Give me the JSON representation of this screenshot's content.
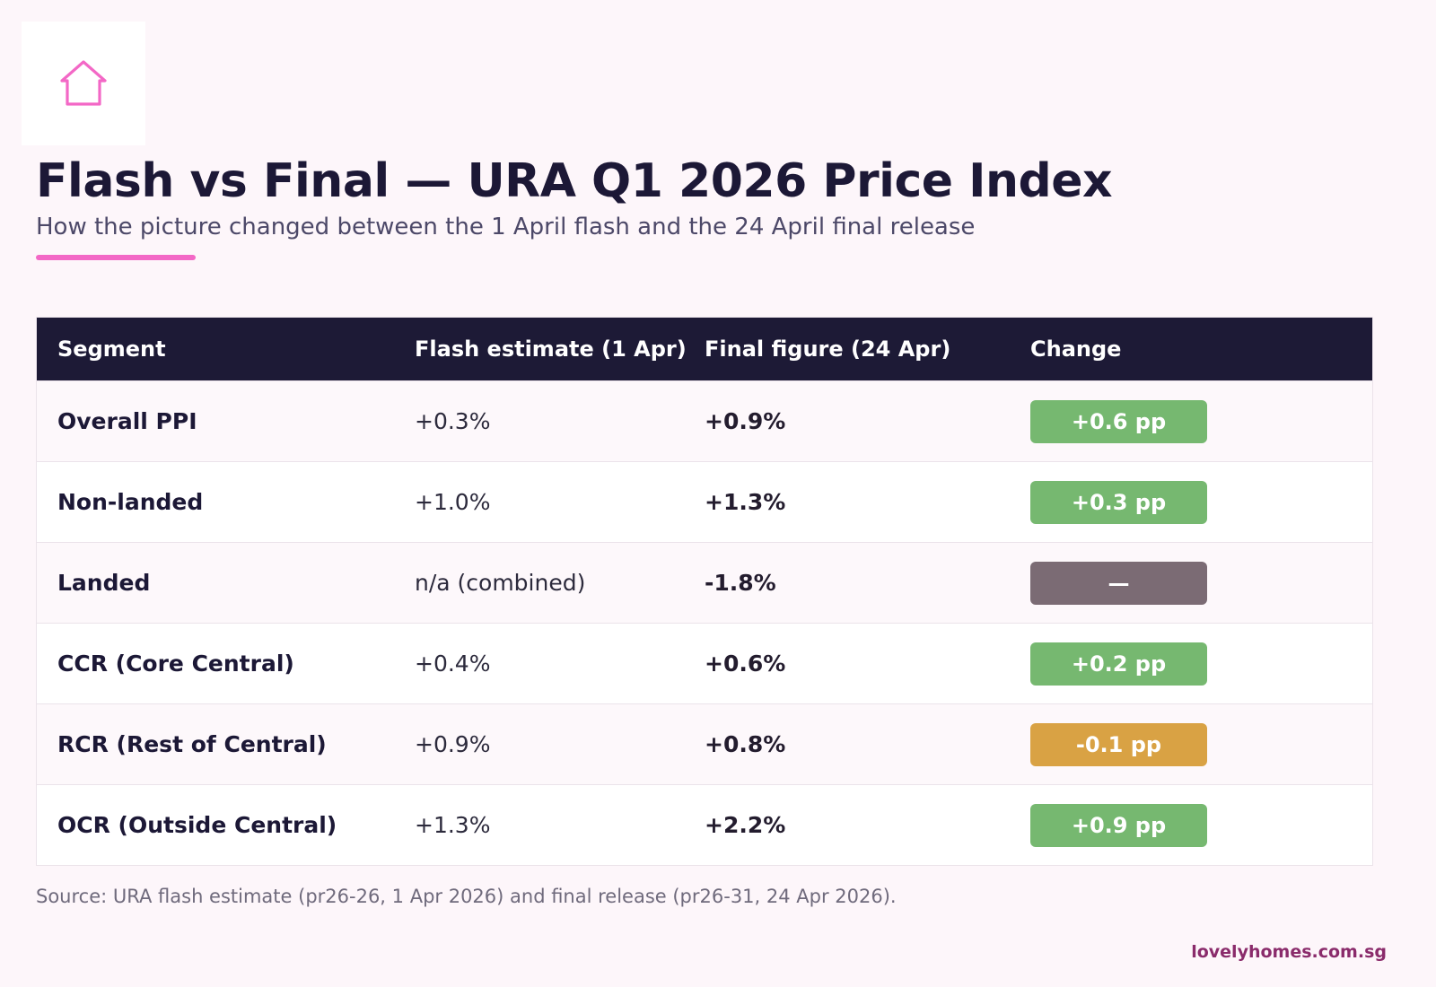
{
  "logo": {
    "icon": "house-icon",
    "color": "#f368c6"
  },
  "header": {
    "title": "Flash vs Final — URA Q1 2026 Price Index",
    "subtitle": "How the picture changed between the 1 April flash and the 24 April final release"
  },
  "chart_data": {
    "type": "table",
    "columns": [
      "Segment",
      "Flash estimate (1 Apr)",
      "Final figure (24 Apr)",
      "Change"
    ],
    "rows": [
      {
        "segment": "Overall PPI",
        "flash": "+0.3%",
        "final": "+0.9%",
        "change": "+0.6 pp",
        "status": "up"
      },
      {
        "segment": "Non-landed",
        "flash": "+1.0%",
        "final": "+1.3%",
        "change": "+0.3 pp",
        "status": "up"
      },
      {
        "segment": "Landed",
        "flash": "n/a (combined)",
        "final": "-1.8%",
        "change": "—",
        "status": "na"
      },
      {
        "segment": "CCR (Core Central)",
        "flash": "+0.4%",
        "final": "+0.6%",
        "change": "+0.2 pp",
        "status": "up"
      },
      {
        "segment": "RCR (Rest of Central)",
        "flash": "+0.9%",
        "final": "+0.8%",
        "change": "-0.1 pp",
        "status": "down"
      },
      {
        "segment": "OCR (Outside Central)",
        "flash": "+1.3%",
        "final": "+2.2%",
        "change": "+0.9 pp",
        "status": "up"
      }
    ],
    "status_colors": {
      "up": "#76b870",
      "down": "#d9a244",
      "na": "#7b6b74"
    }
  },
  "footer": {
    "source": "Source: URA flash estimate (pr26-26, 1 Apr 2026) and final release (pr26-31, 24 Apr 2026).",
    "brand": "lovelyhomes.com.sg"
  }
}
